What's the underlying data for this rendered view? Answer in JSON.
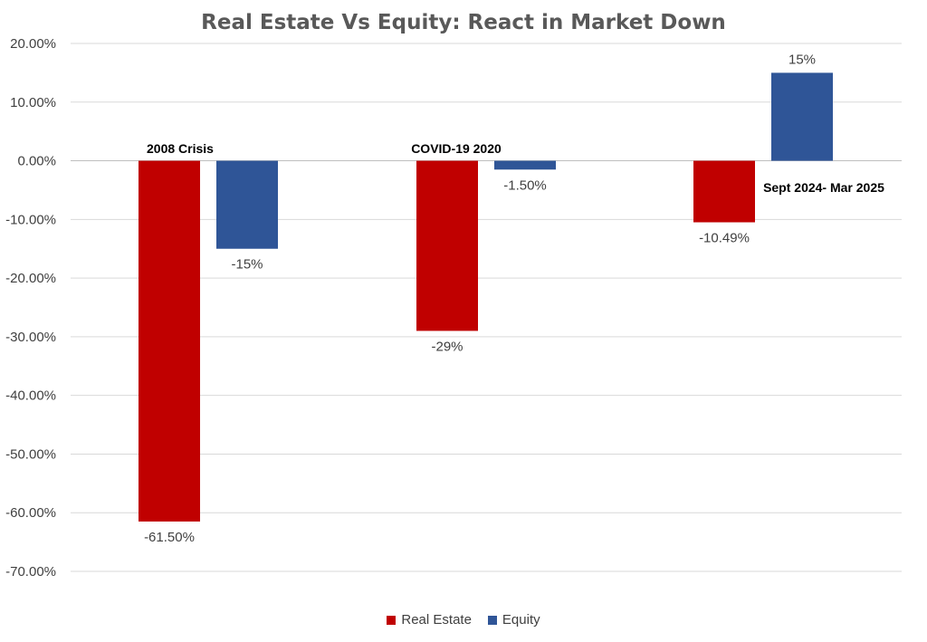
{
  "chart_data": {
    "type": "bar",
    "title": "Real Estate Vs Equity: React in Market Down",
    "xlabel": "",
    "ylabel": "",
    "categories": [
      "2008 Crisis",
      "COVID-19 2020",
      "Sept 2024- Mar 2025"
    ],
    "series": [
      {
        "name": "Real Estate",
        "color": "#C00000",
        "values": [
          -61.5,
          -29,
          -10.49
        ],
        "labels": [
          "-61.50%",
          "-29%",
          "-10.49%"
        ]
      },
      {
        "name": "Equity",
        "color": "#2F5597",
        "values": [
          -15,
          -1.5,
          15
        ],
        "labels": [
          "-15%",
          "-1.50%",
          "15%"
        ]
      }
    ],
    "ylim": [
      -70,
      20
    ],
    "yticks": [
      20,
      10,
      0,
      -10,
      -20,
      -30,
      -40,
      -50,
      -60,
      -70
    ],
    "ytick_labels": [
      "20.00%",
      "10.00%",
      "0.00%",
      "-10.00%",
      "-20.00%",
      "-30.00%",
      "-40.00%",
      "-50.00%",
      "-60.00%",
      "-70.00%"
    ],
    "grid": true,
    "legend_position": "bottom"
  }
}
